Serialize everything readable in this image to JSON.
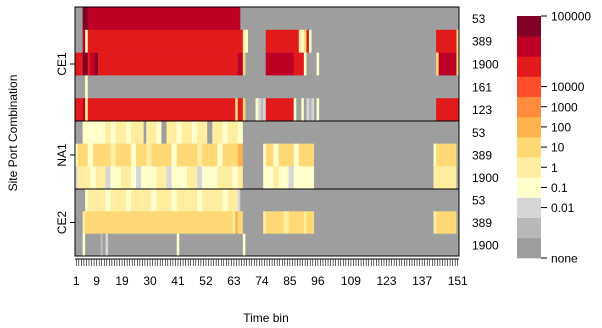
{
  "chart_data": {
    "type": "heatmap",
    "xlabel": "Time bin",
    "ylabel": "Site Port Combination",
    "x_range": [
      1,
      151
    ],
    "x_ticks": [
      1,
      9,
      19,
      30,
      41,
      52,
      63,
      74,
      85,
      96,
      109,
      123,
      137,
      151
    ],
    "groups": [
      {
        "name": "CE1",
        "ports": [
          "53",
          "389",
          "1900",
          "161",
          "123"
        ]
      },
      {
        "name": "NA1",
        "ports": [
          "53",
          "389",
          "1900"
        ]
      },
      {
        "name": "CE2",
        "ports": [
          "53",
          "389",
          "1900"
        ]
      }
    ],
    "legend": {
      "levels": [
        "none",
        "0.01",
        "0.1",
        "1",
        "10",
        "100",
        "1000",
        "10000",
        "100000"
      ],
      "colors": [
        "#9e9e9e",
        "#b8b8b8",
        "#d6d6d6",
        "#ffffcc",
        "#ffeda0",
        "#fed976",
        "#feb24c",
        "#fd8d3c",
        "#fc4e2a",
        "#e31a1c",
        "#bd0026",
        "#800026"
      ]
    },
    "rows": [
      {
        "group": "CE1",
        "port": "53",
        "segments": [
          [
            1,
            3,
            0
          ],
          [
            4,
            5,
            11
          ],
          [
            6,
            65,
            10
          ],
          [
            66,
            151,
            0
          ]
        ]
      },
      {
        "group": "CE1",
        "port": "389",
        "segments": [
          [
            1,
            3,
            0
          ],
          [
            4,
            4,
            10
          ],
          [
            5,
            5,
            3
          ],
          [
            6,
            66,
            9
          ],
          [
            67,
            67,
            4
          ],
          [
            68,
            68,
            3
          ],
          [
            69,
            75,
            0
          ],
          [
            76,
            88,
            9
          ],
          [
            89,
            89,
            4
          ],
          [
            90,
            90,
            3
          ],
          [
            91,
            91,
            5
          ],
          [
            92,
            92,
            9
          ],
          [
            93,
            93,
            3
          ],
          [
            94,
            142,
            0
          ],
          [
            143,
            150,
            9
          ],
          [
            151,
            151,
            5
          ]
        ]
      },
      {
        "group": "CE1",
        "port": "1900",
        "segments": [
          [
            1,
            3,
            9
          ],
          [
            4,
            5,
            11
          ],
          [
            6,
            6,
            9
          ],
          [
            7,
            8,
            10
          ],
          [
            9,
            9,
            11
          ],
          [
            10,
            64,
            9
          ],
          [
            65,
            66,
            10
          ],
          [
            67,
            67,
            5
          ],
          [
            68,
            75,
            0
          ],
          [
            76,
            86,
            10
          ],
          [
            87,
            90,
            9
          ],
          [
            91,
            91,
            3
          ],
          [
            92,
            95,
            0
          ],
          [
            96,
            96,
            3
          ],
          [
            97,
            142,
            0
          ],
          [
            143,
            143,
            5
          ],
          [
            144,
            150,
            10
          ],
          [
            151,
            151,
            5
          ]
        ]
      },
      {
        "group": "CE1",
        "port": "161",
        "segments": [
          [
            1,
            4,
            0
          ],
          [
            5,
            5,
            3
          ],
          [
            6,
            151,
            0
          ]
        ]
      },
      {
        "group": "CE1",
        "port": "123",
        "segments": [
          [
            1,
            3,
            9
          ],
          [
            4,
            4,
            10
          ],
          [
            5,
            5,
            4
          ],
          [
            6,
            63,
            9
          ],
          [
            64,
            64,
            5
          ],
          [
            65,
            66,
            9
          ],
          [
            67,
            67,
            5
          ],
          [
            68,
            71,
            0
          ],
          [
            72,
            72,
            3
          ],
          [
            73,
            73,
            2
          ],
          [
            74,
            74,
            1
          ],
          [
            75,
            75,
            2
          ],
          [
            76,
            86,
            9
          ],
          [
            87,
            87,
            3
          ],
          [
            88,
            89,
            0
          ],
          [
            90,
            90,
            3
          ],
          [
            91,
            91,
            0
          ],
          [
            92,
            92,
            2
          ],
          [
            93,
            93,
            1
          ],
          [
            94,
            94,
            2
          ],
          [
            95,
            95,
            0
          ],
          [
            96,
            96,
            3
          ],
          [
            97,
            142,
            0
          ],
          [
            143,
            151,
            9
          ]
        ]
      },
      {
        "group": "NA1",
        "port": "53",
        "segments": [
          [
            1,
            3,
            0
          ],
          [
            4,
            12,
            3
          ],
          [
            13,
            14,
            4
          ],
          [
            15,
            16,
            3
          ],
          [
            17,
            20,
            4
          ],
          [
            21,
            22,
            3
          ],
          [
            23,
            27,
            4
          ],
          [
            28,
            28,
            0
          ],
          [
            29,
            32,
            4
          ],
          [
            33,
            34,
            3
          ],
          [
            35,
            36,
            0
          ],
          [
            37,
            40,
            4
          ],
          [
            41,
            42,
            3
          ],
          [
            43,
            46,
            4
          ],
          [
            47,
            48,
            3
          ],
          [
            49,
            52,
            4
          ],
          [
            53,
            54,
            0
          ],
          [
            55,
            58,
            4
          ],
          [
            59,
            60,
            3
          ],
          [
            61,
            64,
            4
          ],
          [
            65,
            66,
            3
          ],
          [
            67,
            151,
            0
          ]
        ]
      },
      {
        "group": "NA1",
        "port": "389",
        "segments": [
          [
            1,
            1,
            3
          ],
          [
            2,
            5,
            5
          ],
          [
            6,
            7,
            3
          ],
          [
            8,
            14,
            5
          ],
          [
            15,
            16,
            4
          ],
          [
            17,
            22,
            5
          ],
          [
            23,
            24,
            3
          ],
          [
            25,
            28,
            5
          ],
          [
            29,
            30,
            4
          ],
          [
            31,
            38,
            5
          ],
          [
            39,
            40,
            3
          ],
          [
            41,
            48,
            5
          ],
          [
            49,
            50,
            4
          ],
          [
            51,
            56,
            5
          ],
          [
            57,
            58,
            3
          ],
          [
            59,
            64,
            5
          ],
          [
            65,
            66,
            6
          ],
          [
            67,
            74,
            0
          ],
          [
            75,
            75,
            3
          ],
          [
            76,
            78,
            5
          ],
          [
            79,
            80,
            3
          ],
          [
            81,
            86,
            5
          ],
          [
            87,
            88,
            3
          ],
          [
            89,
            94,
            5
          ],
          [
            95,
            141,
            0
          ],
          [
            142,
            142,
            3
          ],
          [
            143,
            150,
            5
          ],
          [
            151,
            151,
            0
          ]
        ]
      },
      {
        "group": "NA1",
        "port": "1900",
        "segments": [
          [
            1,
            1,
            2
          ],
          [
            2,
            6,
            4
          ],
          [
            7,
            8,
            3
          ],
          [
            9,
            12,
            4
          ],
          [
            13,
            14,
            2
          ],
          [
            15,
            18,
            3
          ],
          [
            19,
            22,
            4
          ],
          [
            23,
            24,
            3
          ],
          [
            25,
            26,
            2
          ],
          [
            27,
            32,
            3
          ],
          [
            33,
            36,
            4
          ],
          [
            37,
            38,
            2
          ],
          [
            39,
            44,
            3
          ],
          [
            45,
            48,
            4
          ],
          [
            49,
            50,
            2
          ],
          [
            51,
            56,
            3
          ],
          [
            57,
            62,
            4
          ],
          [
            63,
            64,
            3
          ],
          [
            65,
            66,
            4
          ],
          [
            67,
            74,
            0
          ],
          [
            75,
            78,
            3
          ],
          [
            79,
            80,
            4
          ],
          [
            81,
            84,
            3
          ],
          [
            85,
            86,
            2
          ],
          [
            87,
            94,
            3
          ],
          [
            95,
            141,
            0
          ],
          [
            142,
            150,
            4
          ],
          [
            151,
            151,
            0
          ]
        ]
      },
      {
        "group": "CE2",
        "port": "53",
        "segments": [
          [
            1,
            4,
            0
          ],
          [
            5,
            5,
            3
          ],
          [
            6,
            12,
            4
          ],
          [
            13,
            14,
            3
          ],
          [
            15,
            20,
            4
          ],
          [
            21,
            22,
            3
          ],
          [
            23,
            30,
            4
          ],
          [
            31,
            32,
            3
          ],
          [
            33,
            38,
            4
          ],
          [
            39,
            40,
            3
          ],
          [
            41,
            48,
            4
          ],
          [
            49,
            50,
            3
          ],
          [
            51,
            58,
            4
          ],
          [
            59,
            60,
            3
          ],
          [
            61,
            64,
            4
          ],
          [
            65,
            65,
            2
          ],
          [
            66,
            151,
            0
          ]
        ]
      },
      {
        "group": "CE2",
        "port": "389",
        "segments": [
          [
            1,
            3,
            0
          ],
          [
            4,
            4,
            4
          ],
          [
            5,
            62,
            5
          ],
          [
            63,
            63,
            4
          ],
          [
            64,
            64,
            6
          ],
          [
            65,
            66,
            5
          ],
          [
            67,
            74,
            0
          ],
          [
            75,
            75,
            4
          ],
          [
            76,
            82,
            5
          ],
          [
            83,
            84,
            4
          ],
          [
            85,
            90,
            5
          ],
          [
            91,
            91,
            4
          ],
          [
            92,
            94,
            5
          ],
          [
            95,
            141,
            0
          ],
          [
            142,
            142,
            4
          ],
          [
            143,
            150,
            5
          ],
          [
            151,
            151,
            0
          ]
        ]
      },
      {
        "group": "CE2",
        "port": "1900",
        "segments": [
          [
            1,
            3,
            0
          ],
          [
            4,
            4,
            3
          ],
          [
            5,
            10,
            0
          ],
          [
            11,
            11,
            1
          ],
          [
            12,
            12,
            0
          ],
          [
            13,
            13,
            2
          ],
          [
            14,
            40,
            0
          ],
          [
            41,
            41,
            3
          ],
          [
            42,
            66,
            0
          ],
          [
            67,
            67,
            3
          ],
          [
            68,
            151,
            0
          ]
        ]
      }
    ]
  }
}
